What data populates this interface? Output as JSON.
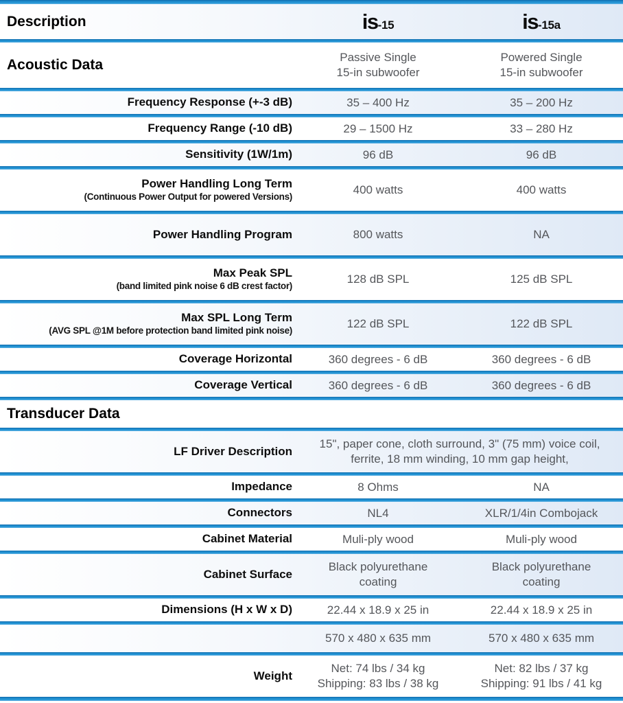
{
  "table": {
    "accent_divider_color": "#1f8ccd",
    "row_tint_color": "#dfe9f6",
    "label_color": "#0d0d0d",
    "value_color": "#54565a",
    "rows": [
      {
        "type": "columns-header",
        "size": "header",
        "label": "Description",
        "products": [
          {
            "brand": "is",
            "suffix": "-15"
          },
          {
            "brand": "is",
            "suffix": "-15a"
          }
        ]
      },
      {
        "type": "section",
        "size": "xl",
        "label": "Acoustic Data",
        "values": [
          [
            "Passive Single",
            "15-in subwoofer"
          ],
          [
            "Powered Single",
            "15-in subwoofer"
          ]
        ]
      },
      {
        "type": "spec",
        "size": "sm",
        "label": "Frequency Response  (+-3 dB)",
        "values": [
          [
            "35 – 400 Hz"
          ],
          [
            "35 – 200 Hz"
          ]
        ]
      },
      {
        "type": "spec",
        "size": "sm",
        "label": "Frequency Range (-10 dB)",
        "values": [
          [
            "29 – 1500 Hz"
          ],
          [
            "33 – 280 Hz"
          ]
        ]
      },
      {
        "type": "spec",
        "size": "sm",
        "label": "Sensitivity (1W/1m)",
        "values": [
          [
            "96 dB"
          ],
          [
            "96 dB"
          ]
        ]
      },
      {
        "type": "spec",
        "size": "lg",
        "label": "Power Handling Long Term",
        "sublabel": "(Continuous Power Output for powered Versions)",
        "values": [
          [
            "400 watts"
          ],
          [
            "400 watts"
          ]
        ]
      },
      {
        "type": "spec",
        "size": "lg",
        "label": "Power Handling Program",
        "values": [
          [
            "800 watts"
          ],
          [
            "NA"
          ]
        ]
      },
      {
        "type": "spec",
        "size": "lg",
        "label": "Max Peak SPL",
        "sublabel": "(band limited pink noise 6 dB crest factor)",
        "values": [
          [
            "128 dB SPL"
          ],
          [
            "125 dB SPL"
          ]
        ]
      },
      {
        "type": "spec",
        "size": "lg",
        "label": "Max SPL Long Term",
        "sublabel": "(AVG SPL @1M before protection band limited pink noise)",
        "values": [
          [
            "122 dB SPL"
          ],
          [
            "122 dB SPL"
          ]
        ]
      },
      {
        "type": "spec",
        "size": "sm",
        "label": "Coverage Horizontal",
        "values": [
          [
            "360 degrees - 6 dB"
          ],
          [
            "360 degrees - 6 dB"
          ]
        ]
      },
      {
        "type": "spec",
        "size": "sm",
        "label": "Coverage Vertical",
        "values": [
          [
            "360 degrees - 6 dB"
          ],
          [
            "360 degrees - 6 dB"
          ]
        ]
      },
      {
        "type": "section",
        "size": "md",
        "label": "Transducer Data",
        "values": []
      },
      {
        "type": "spec",
        "size": "lg",
        "label": "LF Driver Description",
        "span_value": [
          "15\", paper cone, cloth surround, 3\" (75 mm) voice coil,",
          "ferrite, 18 mm winding, 10 mm gap height,"
        ]
      },
      {
        "type": "spec",
        "size": "sm",
        "label": "Impedance",
        "values": [
          [
            "8 Ohms"
          ],
          [
            "NA"
          ]
        ]
      },
      {
        "type": "spec",
        "size": "sm",
        "label": "Connectors",
        "values": [
          [
            "NL4"
          ],
          [
            "XLR/1/4in Combojack"
          ]
        ]
      },
      {
        "type": "spec",
        "size": "sm",
        "label": "Cabinet Material",
        "values": [
          [
            "Muli-ply wood"
          ],
          [
            "Muli-ply wood"
          ]
        ]
      },
      {
        "type": "spec",
        "size": "lg",
        "label": "Cabinet Surface",
        "values": [
          [
            "Black polyurethane",
            "coating"
          ],
          [
            "Black polyurethane",
            "coating"
          ]
        ]
      },
      {
        "type": "spec",
        "size": "sm",
        "label": "Dimensions (H x W x D)",
        "values": [
          [
            "22.44 x 18.9 x 25 in"
          ],
          [
            "22.44 x 18.9 x 25 in"
          ]
        ]
      },
      {
        "type": "spec",
        "size": "md",
        "label": "",
        "values": [
          [
            "570 x 480 x 635 mm"
          ],
          [
            "570 x 480 x 635 mm"
          ]
        ]
      },
      {
        "type": "spec",
        "size": "lg",
        "label": "Weight",
        "values": [
          [
            "Net: 74 lbs / 34 kg",
            "Shipping: 83 lbs / 38 kg"
          ],
          [
            "Net: 82 lbs / 37 kg",
            "Shipping: 91 lbs / 41 kg"
          ]
        ]
      }
    ]
  }
}
